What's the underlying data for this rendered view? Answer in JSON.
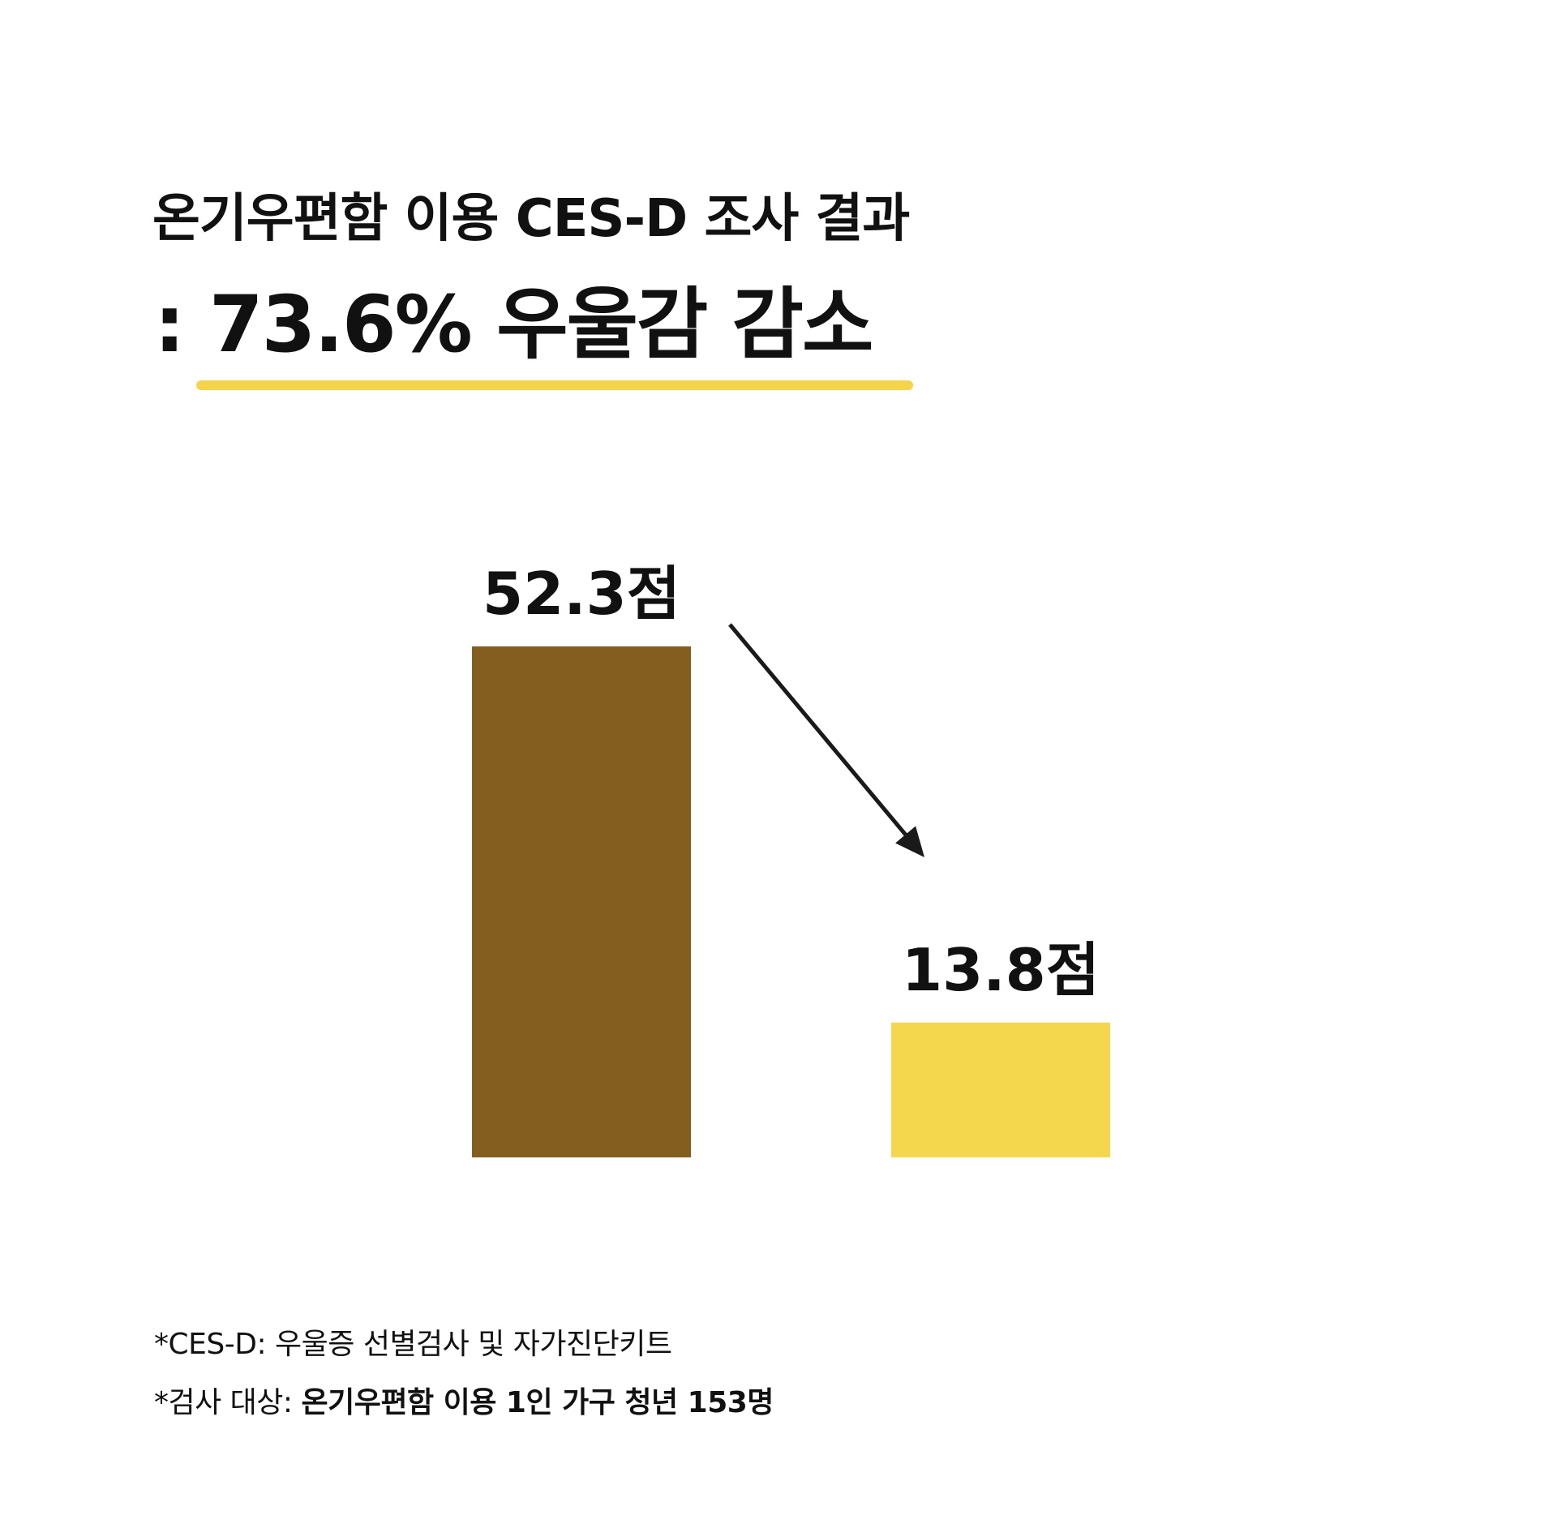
{
  "header": {
    "title_line1": "온기우편함 이용 CES-D 조사 결과",
    "title_line2": ": 73.6% 우울감 감소"
  },
  "colors": {
    "accent_yellow": "#F4D44B",
    "bar_before": "#845E1F",
    "bar_after": "#F4D74D",
    "text": "#111111"
  },
  "chart_data": {
    "type": "bar",
    "categories": [
      "",
      ""
    ],
    "values": [
      52.3,
      13.8
    ],
    "data_labels": [
      "52.3점",
      "13.8점"
    ],
    "bar_colors": [
      "#845E1F",
      "#F4D74D"
    ],
    "title": "",
    "xlabel": "",
    "ylabel": "",
    "ylim": [
      0,
      52.3
    ],
    "grid": false,
    "legend": "none",
    "annotation": "arrow-from-first-to-second-label"
  },
  "footnotes": {
    "line1": "*CES-D: 우울증 선별검사 및 자가진단키트",
    "line2_prefix": "*검사 대상: ",
    "line2_bold": "온기우편함 이용 1인 가구 청년 153명"
  }
}
